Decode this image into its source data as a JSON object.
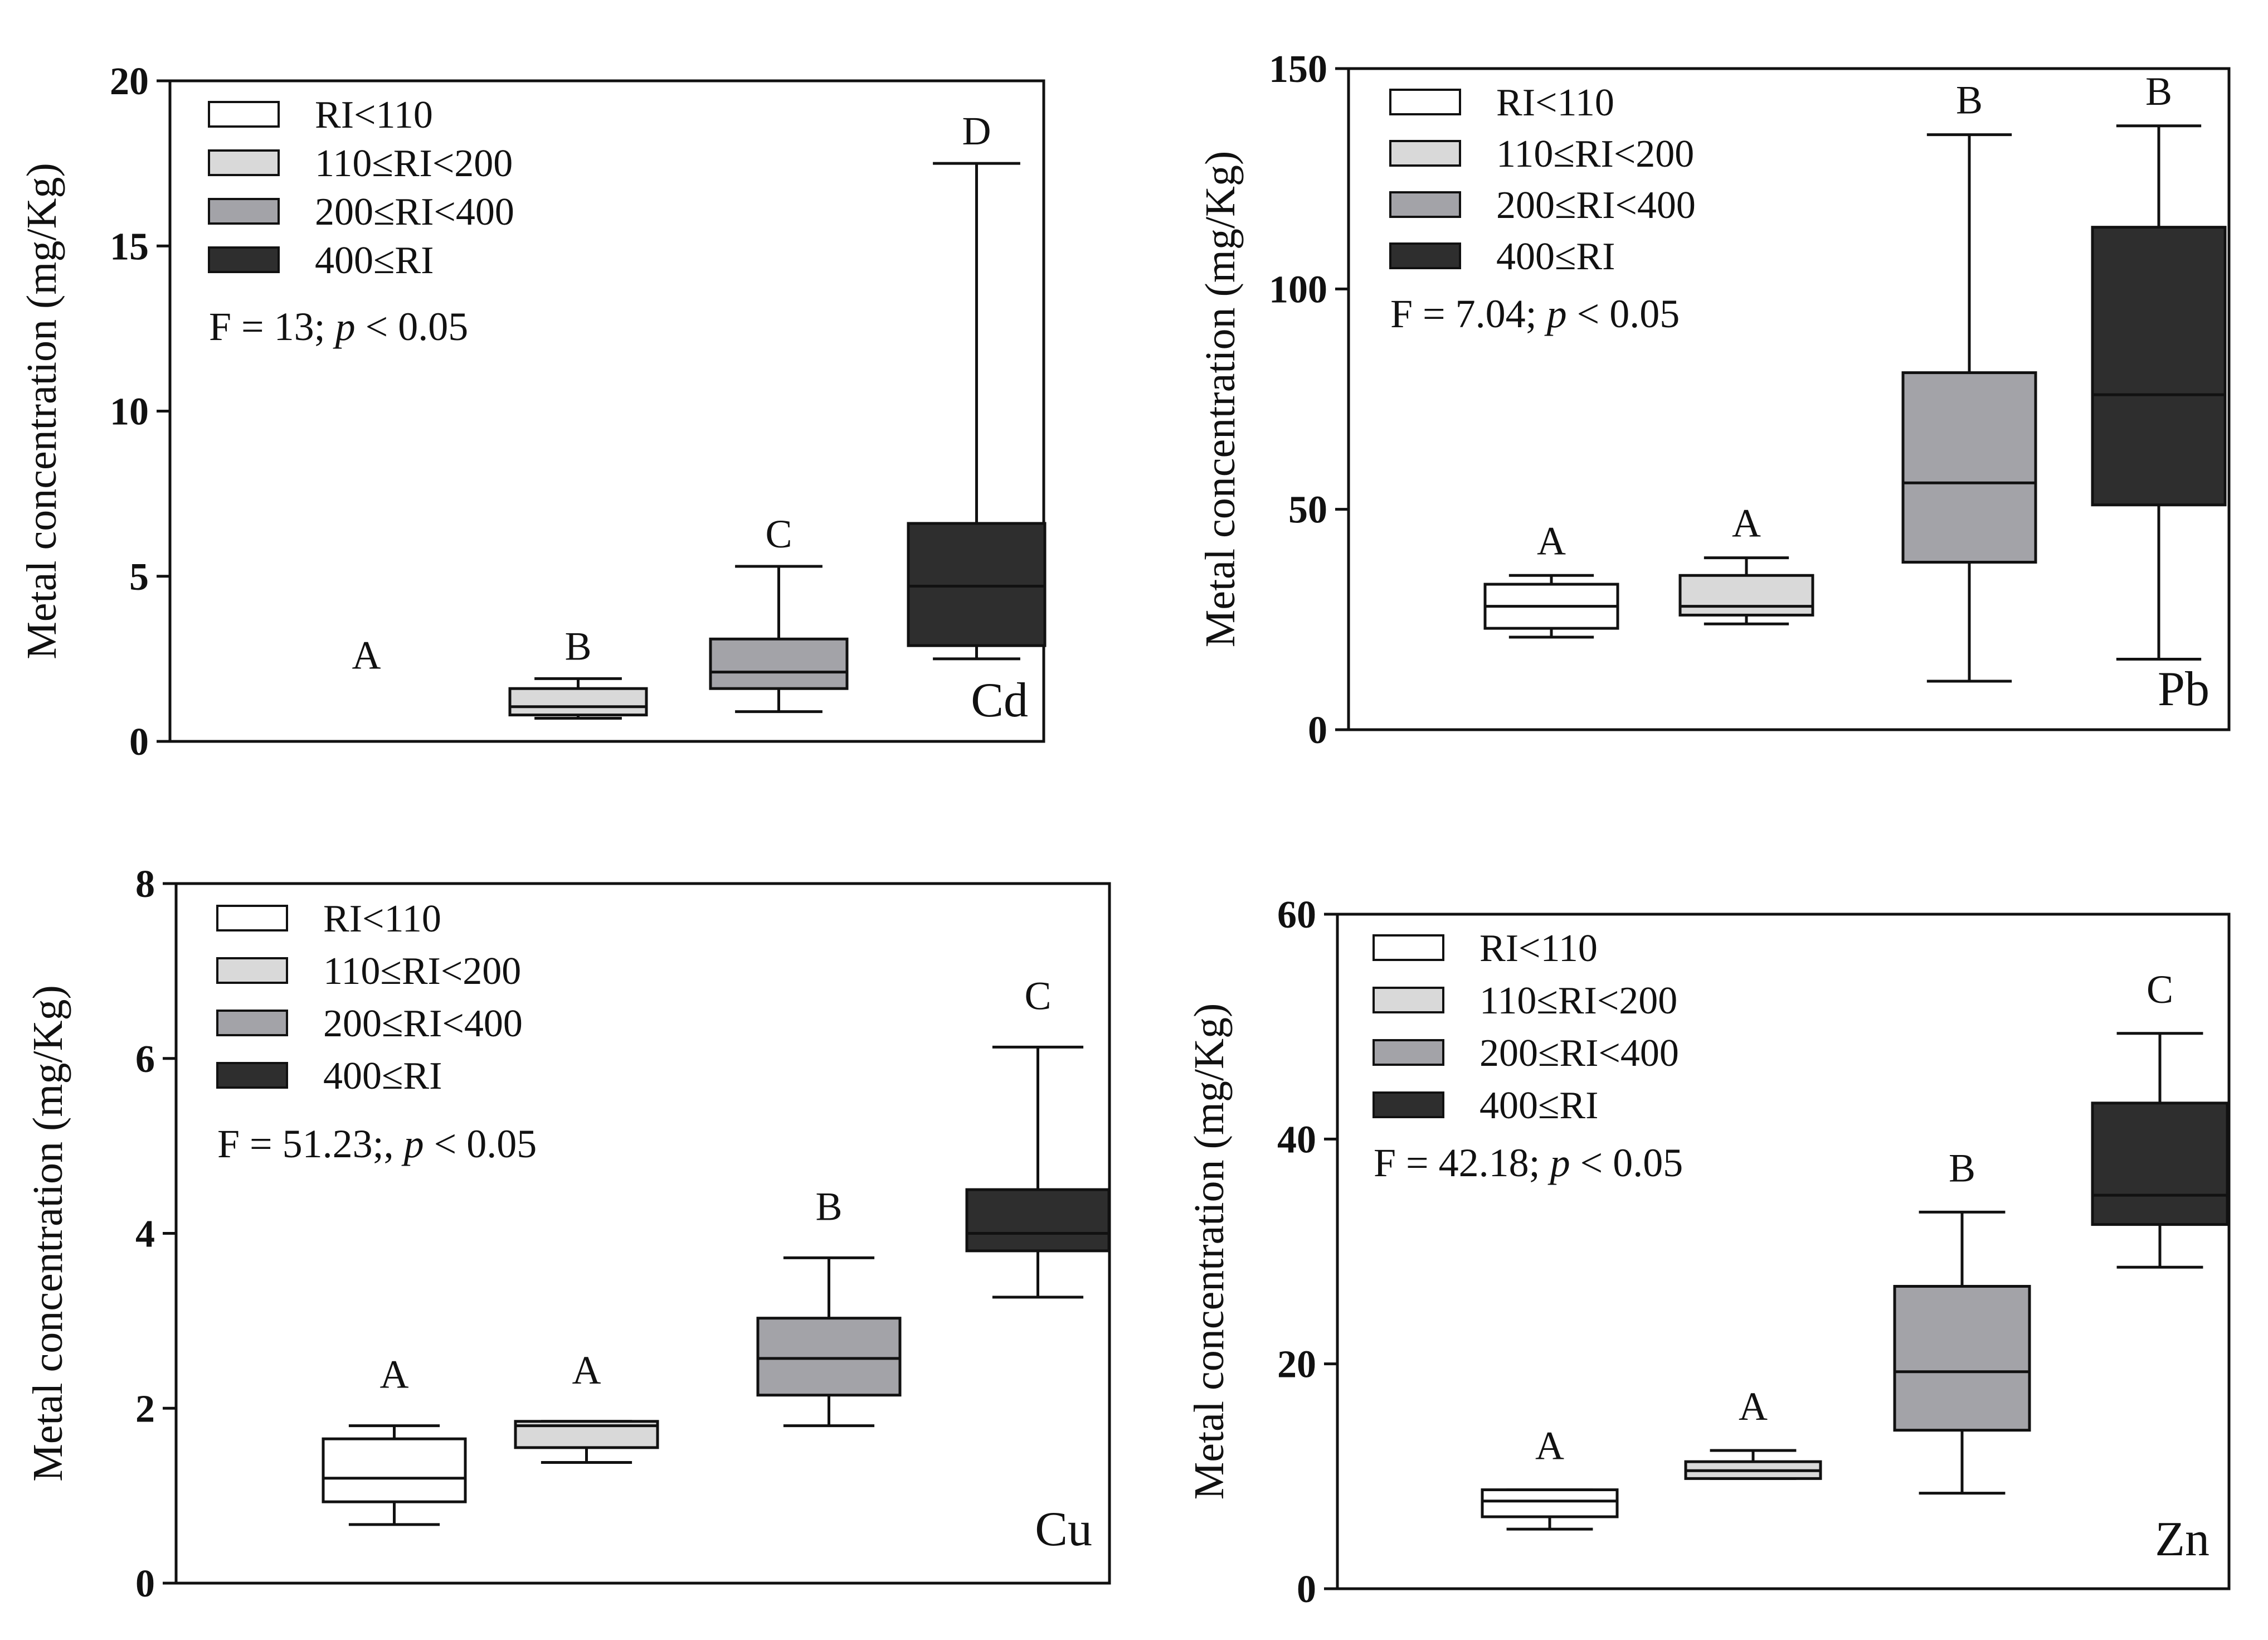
{
  "legend_items": [
    {
      "label": "RI<110",
      "color": "#ffffff"
    },
    {
      "label": "110≤RI<200",
      "color": "#d9d9d9"
    },
    {
      "label": "200≤RI<400",
      "color": "#a3a3a8"
    },
    {
      "label": "400≤RI",
      "color": "#2e2e2e"
    }
  ],
  "chart_data": [
    {
      "type": "box",
      "metal": "Cd",
      "ylabel": "Metal concentration (mg/Kg)",
      "ylim": [
        0,
        20
      ],
      "yticks": [
        0,
        5,
        10,
        15,
        20
      ],
      "stat_prefix": "F = 13; ",
      "stat_p": "p",
      "stat_suffix": " < 0.05",
      "boxes": [
        {
          "group": "RI<110",
          "letter": "A",
          "min": null,
          "q1": null,
          "median": null,
          "q3": null,
          "max": null
        },
        {
          "group": "110≤RI<200",
          "letter": "B",
          "min": 0.7,
          "q1": 0.8,
          "median": 1.05,
          "q3": 1.6,
          "max": 1.9
        },
        {
          "group": "200≤RI<400",
          "letter": "C",
          "min": 0.9,
          "q1": 1.6,
          "median": 2.1,
          "q3": 3.1,
          "max": 5.3
        },
        {
          "group": "400≤RI",
          "letter": "D",
          "min": 2.5,
          "q1": 2.9,
          "median": 4.7,
          "q3": 6.6,
          "max": 17.5
        }
      ]
    },
    {
      "type": "box",
      "metal": "Pb",
      "ylabel": "Metal concentration (mg/Kg)",
      "ylim": [
        0,
        150
      ],
      "yticks": [
        0,
        50,
        100,
        150
      ],
      "stat_prefix": "F = 7.04; ",
      "stat_p": "p",
      "stat_suffix": " < 0.05",
      "boxes": [
        {
          "group": "RI<110",
          "letter": "A",
          "min": 21,
          "q1": 23,
          "median": 28,
          "q3": 33,
          "max": 35
        },
        {
          "group": "110≤RI<200",
          "letter": "A",
          "min": 24,
          "q1": 26,
          "median": 28,
          "q3": 35,
          "max": 39
        },
        {
          "group": "200≤RI<400",
          "letter": "B",
          "min": 11,
          "q1": 38,
          "median": 56,
          "q3": 81,
          "max": 135
        },
        {
          "group": "400≤RI",
          "letter": "B",
          "min": 16,
          "q1": 51,
          "median": 76,
          "q3": 114,
          "max": 137
        }
      ]
    },
    {
      "type": "box",
      "metal": "Cu",
      "ylabel": "Metal concentration (mg/Kg)",
      "ylim": [
        0,
        8
      ],
      "yticks": [
        0,
        2,
        4,
        6,
        8
      ],
      "stat_prefix": "F = 51.23;, ",
      "stat_p": "p",
      "stat_suffix": " < 0.05",
      "boxes": [
        {
          "group": "RI<110",
          "letter": "A",
          "min": 0.67,
          "q1": 0.93,
          "median": 1.2,
          "q3": 1.65,
          "max": 1.8
        },
        {
          "group": "110≤RI<200",
          "letter": "A",
          "min": 1.38,
          "q1": 1.55,
          "median": 1.8,
          "q3": 1.85,
          "max": 1.85
        },
        {
          "group": "200≤RI<400",
          "letter": "B",
          "min": 1.8,
          "q1": 2.15,
          "median": 2.57,
          "q3": 3.03,
          "max": 3.72
        },
        {
          "group": "400≤RI",
          "letter": "C",
          "min": 3.27,
          "q1": 3.8,
          "median": 4.0,
          "q3": 4.5,
          "max": 6.13
        }
      ]
    },
    {
      "type": "box",
      "metal": "Zn",
      "ylabel": "Metal concentration (mg/Kg)",
      "ylim": [
        0,
        60
      ],
      "yticks": [
        0,
        20,
        40,
        60
      ],
      "stat_prefix": "F = 42.18; ",
      "stat_p": "p",
      "stat_suffix": " < 0.05",
      "boxes": [
        {
          "group": "RI<110",
          "letter": "A",
          "min": 5.3,
          "q1": 6.4,
          "median": 7.8,
          "q3": 8.8,
          "max": 8.8
        },
        {
          "group": "110≤RI<200",
          "letter": "A",
          "min": 9.8,
          "q1": 9.8,
          "median": 10.5,
          "q3": 11.3,
          "max": 12.3
        },
        {
          "group": "200≤RI<400",
          "letter": "B",
          "min": 8.5,
          "q1": 14.1,
          "median": 19.3,
          "q3": 26.9,
          "max": 33.5
        },
        {
          "group": "400≤RI",
          "letter": "C",
          "min": 28.6,
          "q1": 32.4,
          "median": 35.0,
          "q3": 43.2,
          "max": 49.4
        }
      ]
    }
  ]
}
